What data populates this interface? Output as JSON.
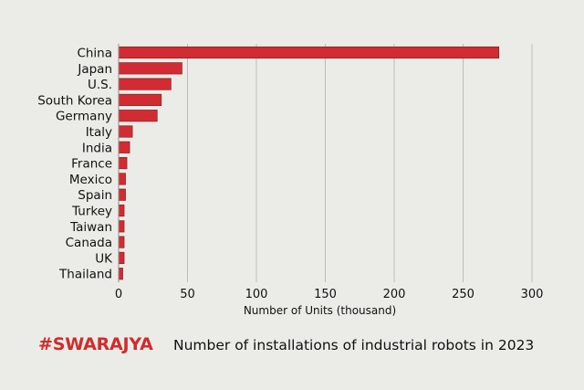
{
  "chart_data": {
    "type": "bar",
    "orientation": "horizontal",
    "categories": [
      "China",
      "Japan",
      "U.S.",
      "South Korea",
      "Germany",
      "Italy",
      "India",
      "France",
      "Mexico",
      "Spain",
      "Turkey",
      "Taiwan",
      "Canada",
      "UK",
      "Thailand"
    ],
    "values": [
      276,
      46,
      38,
      31,
      28,
      10,
      8,
      6,
      5,
      5,
      4,
      4,
      4,
      4,
      3
    ],
    "xlabel": "Number of Units (thousand)",
    "ylabel": "",
    "xlim": [
      0,
      300
    ],
    "xticks": [
      0,
      50,
      100,
      150,
      200,
      250,
      300
    ],
    "grid": true,
    "bar_color": "#d12b33"
  },
  "brand": {
    "text": "#SWARAJYA",
    "color": "#d12b2b"
  },
  "caption": "Number of installations of industrial robots in 2023"
}
